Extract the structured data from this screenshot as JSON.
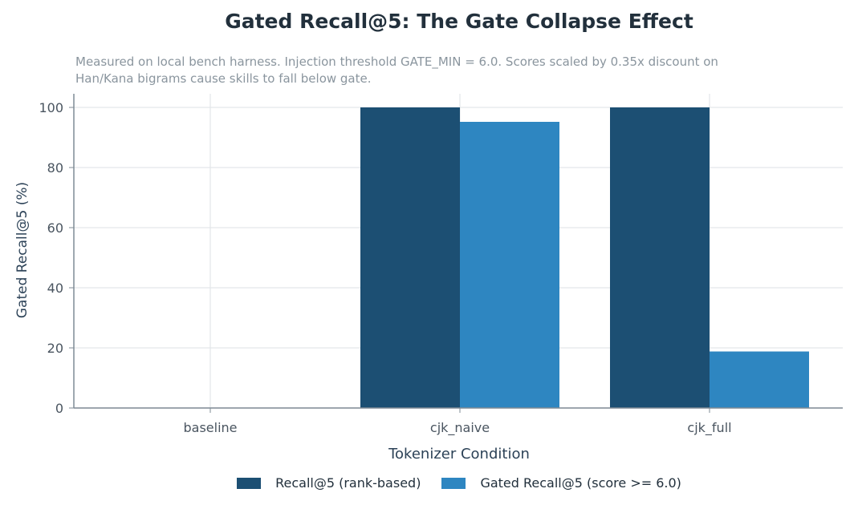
{
  "chart_data": {
    "type": "bar",
    "title": "Gated Recall@5: The Gate Collapse Effect",
    "subtitle": "Measured on local bench harness. Injection threshold GATE_MIN = 6.0. Scores scaled by 0.35x discount on Han/Kana bigrams cause skills to fall below gate.",
    "xlabel": "Tokenizer Condition",
    "ylabel": "Gated Recall@5 (%)",
    "categories": [
      "baseline",
      "cjk_naive",
      "cjk_full"
    ],
    "ylim": [
      0,
      100
    ],
    "yticks": [
      0,
      20,
      40,
      60,
      80,
      100
    ],
    "grid": true,
    "legend_position": "bottom-center",
    "series": [
      {
        "name": "Recall@5 (rank-based)",
        "values": [
          0,
          100,
          100
        ],
        "color": "#1c4f73"
      },
      {
        "name": "Gated Recall@5 (score >= 6.0)",
        "values": [
          0,
          95.2,
          18.8
        ],
        "color": "#2e86c1"
      }
    ]
  }
}
